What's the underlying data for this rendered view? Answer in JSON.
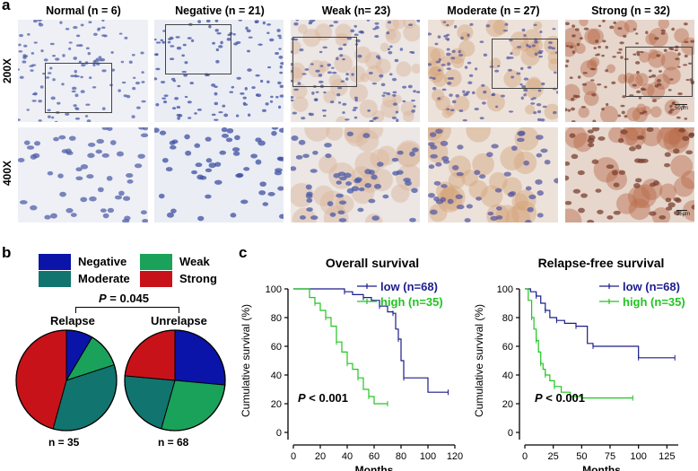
{
  "panel_a": {
    "letter": "a",
    "row_labels": [
      "200X",
      "400X"
    ],
    "columns": [
      {
        "label": "Normal (n = 6)",
        "tone": "normal"
      },
      {
        "label": "Negative (n = 21)",
        "tone": "negative"
      },
      {
        "label": "Weak (n= 23)",
        "tone": "weak"
      },
      {
        "label": "Moderate (n = 27)",
        "tone": "moderate"
      },
      {
        "label": "Strong (n = 32)",
        "tone": "strong"
      }
    ],
    "scale_bar_200x": "50μm",
    "scale_bar_400x": "25μm"
  },
  "panel_b": {
    "letter": "b",
    "legend": [
      {
        "label": "Negative",
        "color": "#0a14a8"
      },
      {
        "label": "Weak",
        "color": "#1aa25a"
      },
      {
        "label": "Moderate",
        "color": "#12746e"
      },
      {
        "label": "Strong",
        "color": "#c8121a"
      }
    ],
    "p_label": "P",
    "p_value": " = 0.045",
    "pies": [
      {
        "title": "Relapse",
        "n_label": "n = 35"
      },
      {
        "title": "Unrelapse",
        "n_label": "n = 68"
      }
    ]
  },
  "panel_c": {
    "letter": "c",
    "line_colors": {
      "low": "#1c1c8c",
      "high": "#22c422"
    }
  },
  "chart_data": [
    {
      "type": "pie",
      "title": "Relapse",
      "categories": [
        "Negative",
        "Weak",
        "Moderate",
        "Strong"
      ],
      "values": [
        3,
        4,
        12,
        16
      ],
      "n": 35
    },
    {
      "type": "pie",
      "title": "Unrelapse",
      "categories": [
        "Negative",
        "Weak",
        "Moderate",
        "Strong"
      ],
      "values": [
        18,
        19,
        15,
        16
      ],
      "n": 68
    },
    {
      "type": "line",
      "title": "Overall survival",
      "xlabel": "Months",
      "ylabel": "Cumulative survival (%)",
      "xlim": [
        0,
        120
      ],
      "ylim": [
        0,
        100
      ],
      "xticks": [
        0,
        20,
        40,
        60,
        80,
        100,
        120
      ],
      "yticks": [
        0,
        20,
        40,
        60,
        80,
        100
      ],
      "annotation": "P < 0.001",
      "series": [
        {
          "name": "low",
          "legend": "low  (n=68)",
          "x": [
            0,
            28,
            38,
            44,
            52,
            58,
            64,
            70,
            74,
            76,
            78,
            80,
            82,
            100,
            115
          ],
          "y": [
            100,
            100,
            98,
            96,
            94,
            92,
            88,
            84,
            83,
            72,
            65,
            50,
            38,
            28,
            28
          ]
        },
        {
          "name": "high",
          "legend": "high (n=35)",
          "x": [
            0,
            12,
            16,
            20,
            24,
            28,
            32,
            36,
            40,
            44,
            48,
            52,
            56,
            60,
            70
          ],
          "y": [
            100,
            94,
            90,
            85,
            80,
            74,
            63,
            56,
            48,
            44,
            38,
            30,
            25,
            20,
            20
          ]
        }
      ]
    },
    {
      "type": "line",
      "title": "Relapse-free survival",
      "xlabel": "Months",
      "ylabel": "Cumulative survival (%)",
      "xlim": [
        0,
        135
      ],
      "ylim": [
        0,
        100
      ],
      "xticks": [
        0,
        25,
        50,
        75,
        100,
        125
      ],
      "yticks": [
        0,
        20,
        40,
        60,
        80,
        100
      ],
      "annotation": "P < 0.001",
      "series": [
        {
          "name": "low",
          "legend": "low  (n=68)",
          "x": [
            0,
            5,
            10,
            14,
            18,
            22,
            28,
            35,
            45,
            55,
            60,
            90,
            100,
            132
          ],
          "y": [
            100,
            98,
            95,
            90,
            85,
            80,
            78,
            76,
            74,
            62,
            60,
            60,
            52,
            52
          ]
        },
        {
          "name": "high",
          "legend": "high (n=35)",
          "x": [
            0,
            3,
            6,
            8,
            10,
            12,
            14,
            16,
            18,
            22,
            26,
            32,
            40,
            50,
            95
          ],
          "y": [
            100,
            92,
            80,
            72,
            64,
            56,
            48,
            44,
            40,
            36,
            32,
            28,
            25,
            24,
            24
          ]
        }
      ]
    }
  ]
}
